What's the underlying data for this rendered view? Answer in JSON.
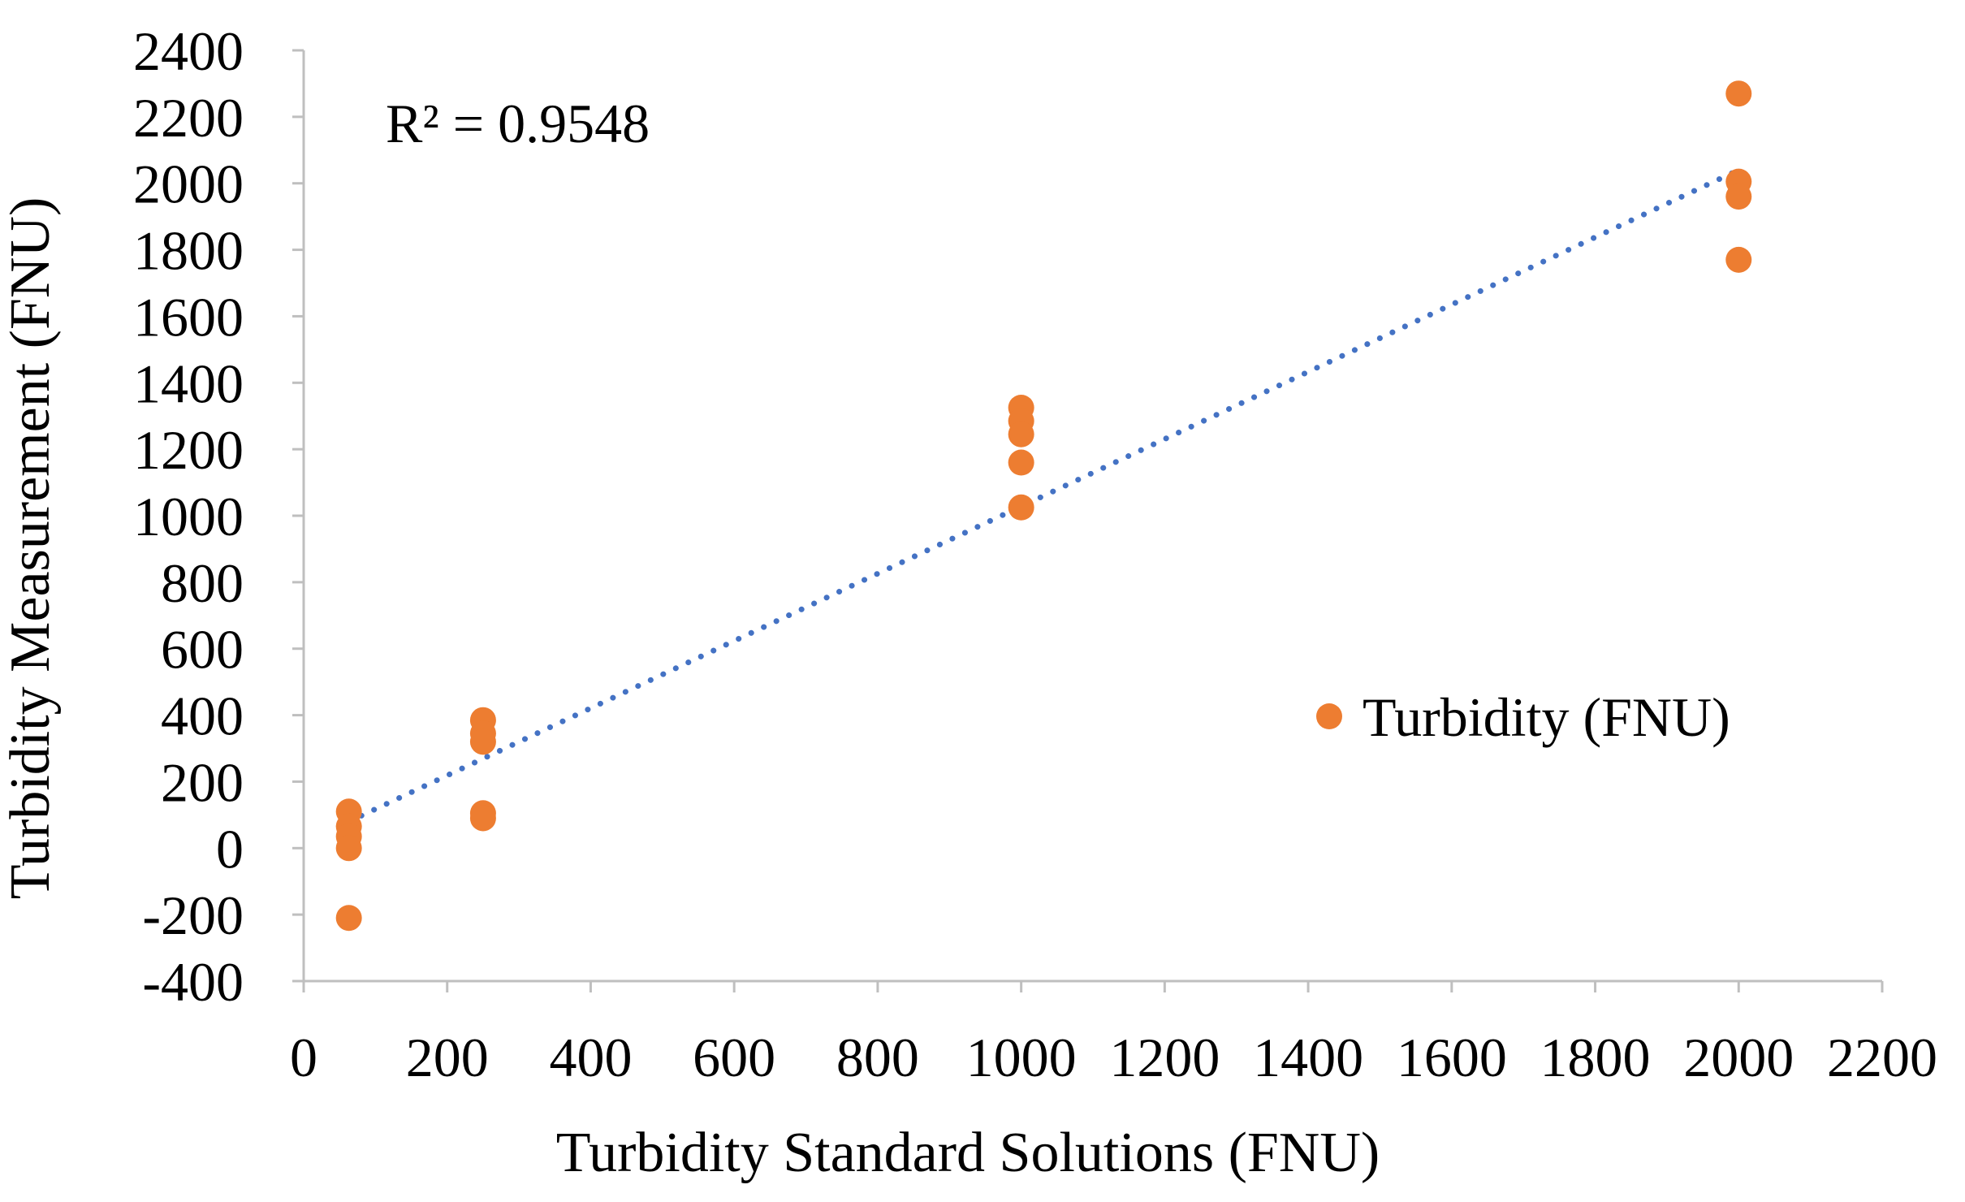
{
  "chart_data": {
    "type": "scatter",
    "title": "",
    "xlabel": "Turbidity Standard Solutions (FNU)",
    "ylabel": "Turbidity Measurement (FNU)",
    "xlim": [
      0,
      2200
    ],
    "ylim": [
      -400,
      2400
    ],
    "x_ticks": [
      0,
      200,
      400,
      600,
      800,
      1000,
      1200,
      1400,
      1600,
      1800,
      2000,
      2200
    ],
    "y_ticks": [
      -400,
      -200,
      0,
      200,
      400,
      600,
      800,
      1000,
      1200,
      1400,
      1600,
      1800,
      2000,
      2200,
      2400
    ],
    "grid": false,
    "legend_position": "right",
    "annotation": "R² = 0.9548",
    "series": [
      {
        "name": "Turbidity (FNU)",
        "color": "#ED7D31",
        "points": [
          {
            "x": 63,
            "y": 110
          },
          {
            "x": 63,
            "y": 65
          },
          {
            "x": 63,
            "y": 35
          },
          {
            "x": 63,
            "y": 0
          },
          {
            "x": 63,
            "y": -210
          },
          {
            "x": 250,
            "y": 385
          },
          {
            "x": 250,
            "y": 345
          },
          {
            "x": 250,
            "y": 320
          },
          {
            "x": 250,
            "y": 105
          },
          {
            "x": 250,
            "y": 90
          },
          {
            "x": 1000,
            "y": 1325
          },
          {
            "x": 1000,
            "y": 1285
          },
          {
            "x": 1000,
            "y": 1245
          },
          {
            "x": 1000,
            "y": 1160
          },
          {
            "x": 1000,
            "y": 1025
          },
          {
            "x": 2000,
            "y": 2270
          },
          {
            "x": 2000,
            "y": 2005
          },
          {
            "x": 2000,
            "y": 1960
          },
          {
            "x": 2000,
            "y": 1770
          }
        ]
      }
    ],
    "trendline": {
      "style": "dotted",
      "color": "#4472C4",
      "x": [
        63,
        2000
      ],
      "y": [
        80,
        2040
      ]
    }
  }
}
